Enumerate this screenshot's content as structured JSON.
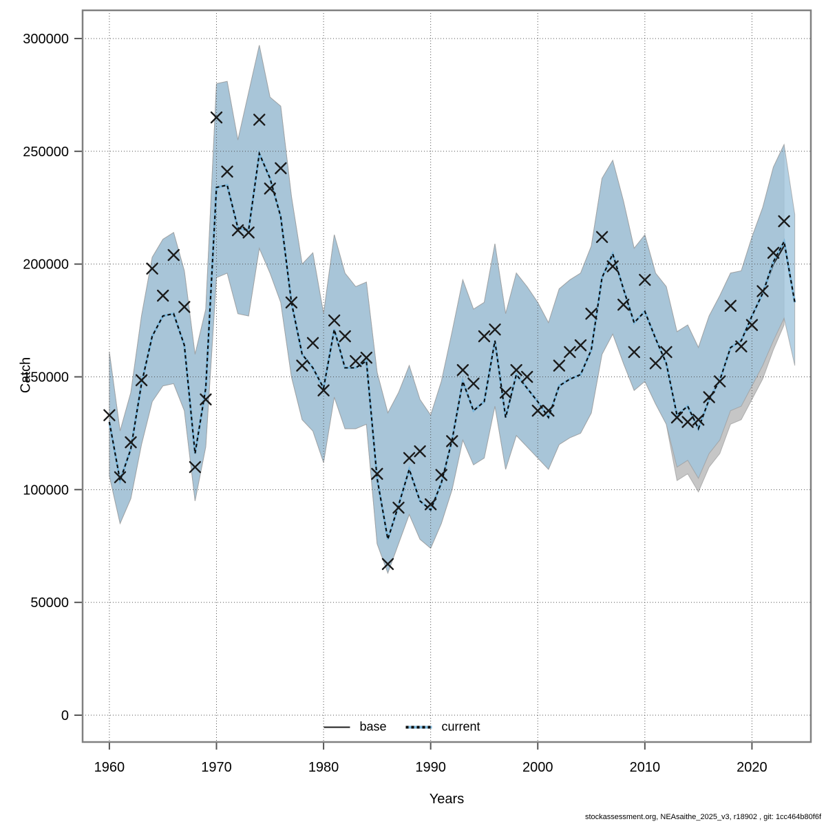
{
  "footer": {
    "text": "stockassessment.org, NEAsaithe_2025_v3, r18902 , git: 1cc464b80f6f"
  },
  "chart_data": {
    "type": "line",
    "title": "",
    "xlabel": "Years",
    "ylabel": "Catch",
    "xlim": [
      1957.5,
      2025.5
    ],
    "ylim": [
      -11900,
      312500
    ],
    "grid": true,
    "x_ticks": [
      1960,
      1970,
      1980,
      1990,
      2000,
      2010,
      2020
    ],
    "y_ticks": [
      0,
      50000,
      100000,
      150000,
      200000,
      250000,
      300000
    ],
    "legend": [
      {
        "label": "base",
        "line": "solid",
        "color": "#1b1b1b"
      },
      {
        "label": "current",
        "line": "dashed",
        "color": "#7db8dc",
        "dash_color": "#0a0a0a"
      }
    ],
    "colors": {
      "band_base": "#c3c3c3",
      "band_current": "#9fc4dc",
      "band_edge": "#9a9a9a",
      "base_line": "#1b1b1b",
      "current_line_under": "#7db8dc",
      "current_line_dash": "#0a0a0a",
      "marker": "#1a1a1a",
      "grid": "#4d4d4d",
      "frame": "#808080"
    },
    "years": [
      1960,
      1961,
      1962,
      1963,
      1964,
      1965,
      1966,
      1967,
      1968,
      1969,
      1970,
      1971,
      1972,
      1973,
      1974,
      1975,
      1976,
      1977,
      1978,
      1979,
      1980,
      1981,
      1982,
      1983,
      1984,
      1985,
      1986,
      1987,
      1988,
      1989,
      1990,
      1991,
      1992,
      1993,
      1994,
      1995,
      1996,
      1997,
      1998,
      1999,
      2000,
      2001,
      2002,
      2003,
      2004,
      2005,
      2006,
      2007,
      2008,
      2009,
      2010,
      2011,
      2012,
      2013,
      2014,
      2015,
      2016,
      2017,
      2018,
      2019,
      2020,
      2021,
      2022,
      2023,
      2024
    ],
    "observed": {
      "name": "observed-catch-markers",
      "marker": "x",
      "years": [
        1960,
        1961,
        1962,
        1963,
        1964,
        1965,
        1966,
        1967,
        1968,
        1969,
        1970,
        1971,
        1972,
        1973,
        1974,
        1975,
        1976,
        1977,
        1978,
        1979,
        1980,
        1981,
        1982,
        1983,
        1984,
        1985,
        1986,
        1987,
        1988,
        1989,
        1990,
        1991,
        1992,
        1993,
        1994,
        1995,
        1996,
        1997,
        1998,
        1999,
        2000,
        2001,
        2002,
        2003,
        2004,
        2005,
        2006,
        2007,
        2008,
        2009,
        2010,
        2011,
        2012,
        2013,
        2014,
        2015,
        2016,
        2017,
        2018,
        2019,
        2020,
        2021,
        2022,
        2023
      ],
      "values": [
        133000,
        105500,
        121000,
        148500,
        198000,
        186000,
        204000,
        181000,
        110000,
        140000,
        265000,
        241000,
        215000,
        214000,
        264000,
        233500,
        242500,
        183000,
        155000,
        165000,
        144000,
        175000,
        168000,
        157000,
        158500,
        107000,
        67000,
        92000,
        114000,
        117000,
        93500,
        106500,
        121500,
        153000,
        147000,
        168000,
        171000,
        143000,
        153000,
        150000,
        135000,
        135000,
        155000,
        161000,
        164000,
        178000,
        212000,
        199000,
        182000,
        161000,
        193000,
        156000,
        161000,
        132000,
        130000,
        131000,
        141000,
        148000,
        181500,
        163500,
        173000,
        188000,
        205000,
        219000
      ]
    },
    "series": [
      {
        "name": "base",
        "years": [
          1960,
          1961,
          1962,
          1963,
          1964,
          1965,
          1966,
          1967,
          1968,
          1969,
          1970,
          1971,
          1972,
          1973,
          1974,
          1975,
          1976,
          1977,
          1978,
          1979,
          1980,
          1981,
          1982,
          1983,
          1984,
          1985,
          1986,
          1987,
          1988,
          1989,
          1990,
          1991,
          1992,
          1993,
          1994,
          1995,
          1996,
          1997,
          1998,
          1999,
          2000,
          2001,
          2002,
          2003,
          2004,
          2005,
          2006,
          2007,
          2008,
          2009,
          2010,
          2011,
          2012,
          2013,
          2014,
          2015,
          2016,
          2017,
          2018,
          2019,
          2020,
          2021,
          2022,
          2023
        ],
        "values": [
          130000,
          104000,
          118000,
          147000,
          168000,
          177000,
          178000,
          164000,
          116000,
          145000,
          234000,
          235000,
          216000,
          215000,
          249000,
          238000,
          221000,
          183000,
          160000,
          154000,
          145000,
          171000,
          154000,
          154000,
          157000,
          105000,
          78000,
          93000,
          109000,
          95000,
          91000,
          103000,
          122000,
          148000,
          135000,
          139000,
          166000,
          132000,
          151000,
          145000,
          139000,
          132000,
          146000,
          149000,
          151000,
          162000,
          194000,
          204500,
          189000,
          174000,
          179000,
          167000,
          156000,
          133000,
          137000,
          127000,
          140000,
          148500,
          163000,
          166000,
          177000,
          187000,
          200000,
          208000
        ],
        "band_hi": [
          161000,
          126000,
          143000,
          177000,
          203000,
          211000,
          214000,
          197000,
          160000,
          180000,
          280000,
          281000,
          255000,
          276000,
          297000,
          274000,
          270000,
          230000,
          200000,
          205000,
          178000,
          213000,
          196000,
          190000,
          192000,
          152000,
          134000,
          143000,
          155000,
          140000,
          133000,
          148000,
          170000,
          193000,
          180000,
          183000,
          209000,
          178000,
          196000,
          190000,
          183000,
          174000,
          189000,
          193000,
          196000,
          208000,
          238000,
          246000,
          228000,
          207000,
          213000,
          196000,
          190000,
          170000,
          173000,
          163000,
          177000,
          186000,
          196000,
          197000,
          212000,
          225000,
          243000,
          253000
        ],
        "band_lo": [
          106000,
          85000,
          96000,
          120000,
          139000,
          146000,
          147000,
          135000,
          95000,
          119000,
          194000,
          196000,
          178000,
          177000,
          207000,
          196000,
          183000,
          150000,
          131000,
          126000,
          112000,
          141000,
          127000,
          127000,
          129000,
          76000,
          63000,
          76000,
          89000,
          78000,
          74000,
          85000,
          100000,
          122000,
          111000,
          114000,
          137000,
          109000,
          124000,
          119000,
          114000,
          109000,
          120000,
          123000,
          125000,
          134000,
          160000,
          169000,
          156000,
          144000,
          148000,
          138000,
          129000,
          104000,
          107000,
          99000,
          110000,
          116000,
          129000,
          131000,
          140000,
          149000,
          162000,
          173000
        ]
      },
      {
        "name": "current",
        "years": [
          1960,
          1961,
          1962,
          1963,
          1964,
          1965,
          1966,
          1967,
          1968,
          1969,
          1970,
          1971,
          1972,
          1973,
          1974,
          1975,
          1976,
          1977,
          1978,
          1979,
          1980,
          1981,
          1982,
          1983,
          1984,
          1985,
          1986,
          1987,
          1988,
          1989,
          1990,
          1991,
          1992,
          1993,
          1994,
          1995,
          1996,
          1997,
          1998,
          1999,
          2000,
          2001,
          2002,
          2003,
          2004,
          2005,
          2006,
          2007,
          2008,
          2009,
          2010,
          2011,
          2012,
          2013,
          2014,
          2015,
          2016,
          2017,
          2018,
          2019,
          2020,
          2021,
          2022,
          2023,
          2024
        ],
        "values": [
          130000,
          104000,
          118000,
          147000,
          168000,
          177000,
          178000,
          164000,
          116000,
          145000,
          234000,
          235000,
          216000,
          215000,
          249000,
          238000,
          221000,
          183000,
          160000,
          154000,
          145000,
          171000,
          154000,
          154000,
          157000,
          105000,
          78000,
          93000,
          109000,
          95000,
          91000,
          103000,
          122000,
          148000,
          135000,
          139000,
          166000,
          132000,
          151000,
          145000,
          139000,
          132000,
          146000,
          149000,
          151000,
          162000,
          194000,
          204500,
          189000,
          174000,
          179000,
          167000,
          156000,
          133000,
          137000,
          127000,
          140000,
          148500,
          163000,
          166000,
          177000,
          187000,
          201000,
          210000,
          183000
        ],
        "band_hi": [
          161000,
          126000,
          143000,
          177000,
          203000,
          211000,
          214000,
          197000,
          160000,
          180000,
          280000,
          281000,
          255000,
          276000,
          297000,
          274000,
          270000,
          230000,
          200000,
          205000,
          178000,
          213000,
          196000,
          190000,
          192000,
          152000,
          134000,
          143000,
          155000,
          140000,
          133000,
          148000,
          170000,
          193000,
          180000,
          183000,
          209000,
          178000,
          196000,
          190000,
          183000,
          174000,
          189000,
          193000,
          196000,
          208000,
          238000,
          246000,
          228000,
          207000,
          213000,
          196000,
          190000,
          170000,
          173000,
          163000,
          177000,
          186000,
          196000,
          197000,
          212000,
          225000,
          243000,
          253000,
          222000
        ],
        "band_lo": [
          106000,
          85000,
          96000,
          120000,
          139000,
          146000,
          147000,
          135000,
          95000,
          119000,
          194000,
          196000,
          178000,
          177000,
          207000,
          196000,
          183000,
          150000,
          131000,
          126000,
          112000,
          141000,
          127000,
          127000,
          129000,
          76000,
          63000,
          76000,
          89000,
          78000,
          74000,
          85000,
          100000,
          122000,
          111000,
          114000,
          137000,
          109000,
          124000,
          119000,
          114000,
          109000,
          120000,
          123000,
          125000,
          134000,
          160000,
          169000,
          156000,
          144000,
          148000,
          138000,
          129000,
          110000,
          113000,
          105000,
          116000,
          122000,
          135000,
          137000,
          146000,
          155000,
          166000,
          176000,
          155000
        ]
      }
    ]
  }
}
